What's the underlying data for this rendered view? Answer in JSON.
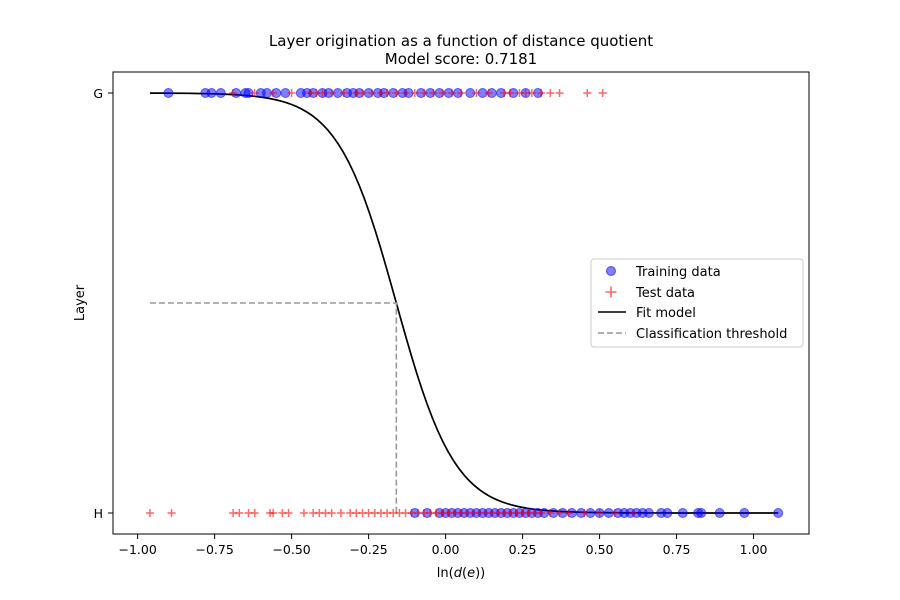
{
  "chart_data": {
    "type": "scatter",
    "title": "Layer origination as a function of distance quotient",
    "subtitle": "Model score: 0.7181",
    "xlabel_prefix": "ln(",
    "xlabel_italic": "d",
    "xlabel_mid": "(",
    "xlabel_italic2": "e",
    "xlabel_suffix": "))",
    "ylabel": "Layer",
    "xlim": [
      -1.08,
      1.18
    ],
    "ylim": [
      -0.05,
      1.05
    ],
    "x_ticks": [
      -1.0,
      -0.75,
      -0.5,
      -0.25,
      0.0,
      0.25,
      0.5,
      0.75,
      1.0
    ],
    "x_tick_labels": [
      "−1.00",
      "−0.75",
      "−0.50",
      "−0.25",
      "0.00",
      "0.25",
      "0.50",
      "0.75",
      "1.00"
    ],
    "y_ticks": [
      0,
      1
    ],
    "y_tick_labels": [
      "H",
      "G"
    ],
    "legend_position": "center-right",
    "grid": false,
    "colors": {
      "training": "#0000ff",
      "test": "#ff0000",
      "fit": "#000000",
      "threshold": "#999999"
    },
    "series": [
      {
        "name": "Training data",
        "kind": "points",
        "marker": "circle",
        "points": [
          [
            -0.9,
            1
          ],
          [
            -0.78,
            1
          ],
          [
            -0.76,
            1
          ],
          [
            -0.73,
            1
          ],
          [
            -0.68,
            1
          ],
          [
            -0.65,
            1
          ],
          [
            -0.64,
            1
          ],
          [
            -0.6,
            1
          ],
          [
            -0.58,
            1
          ],
          [
            -0.55,
            1
          ],
          [
            -0.52,
            1
          ],
          [
            -0.47,
            1
          ],
          [
            -0.45,
            1
          ],
          [
            -0.43,
            1
          ],
          [
            -0.4,
            1
          ],
          [
            -0.38,
            1
          ],
          [
            -0.35,
            1
          ],
          [
            -0.32,
            1
          ],
          [
            -0.3,
            1
          ],
          [
            -0.28,
            1
          ],
          [
            -0.25,
            1
          ],
          [
            -0.22,
            1
          ],
          [
            -0.2,
            1
          ],
          [
            -0.17,
            1
          ],
          [
            -0.14,
            1
          ],
          [
            -0.12,
            1
          ],
          [
            -0.08,
            1
          ],
          [
            -0.05,
            1
          ],
          [
            -0.02,
            1
          ],
          [
            0.01,
            1
          ],
          [
            0.04,
            1
          ],
          [
            0.08,
            1
          ],
          [
            0.12,
            1
          ],
          [
            0.15,
            1
          ],
          [
            0.18,
            1
          ],
          [
            0.22,
            1
          ],
          [
            0.26,
            1
          ],
          [
            0.3,
            1
          ],
          [
            -0.1,
            0
          ],
          [
            -0.06,
            0
          ],
          [
            -0.02,
            0
          ],
          [
            0.0,
            0
          ],
          [
            0.02,
            0
          ],
          [
            0.04,
            0
          ],
          [
            0.06,
            0
          ],
          [
            0.08,
            0
          ],
          [
            0.1,
            0
          ],
          [
            0.12,
            0
          ],
          [
            0.14,
            0
          ],
          [
            0.16,
            0
          ],
          [
            0.18,
            0
          ],
          [
            0.2,
            0
          ],
          [
            0.22,
            0
          ],
          [
            0.24,
            0
          ],
          [
            0.26,
            0
          ],
          [
            0.28,
            0
          ],
          [
            0.3,
            0
          ],
          [
            0.32,
            0
          ],
          [
            0.35,
            0
          ],
          [
            0.38,
            0
          ],
          [
            0.41,
            0
          ],
          [
            0.44,
            0
          ],
          [
            0.47,
            0
          ],
          [
            0.5,
            0
          ],
          [
            0.53,
            0
          ],
          [
            0.56,
            0
          ],
          [
            0.58,
            0
          ],
          [
            0.6,
            0
          ],
          [
            0.62,
            0
          ],
          [
            0.64,
            0
          ],
          [
            0.66,
            0
          ],
          [
            0.7,
            0
          ],
          [
            0.72,
            0
          ],
          [
            0.77,
            0
          ],
          [
            0.82,
            0
          ],
          [
            0.83,
            0
          ],
          [
            0.89,
            0
          ],
          [
            0.97,
            0
          ],
          [
            1.08,
            0
          ]
        ]
      },
      {
        "name": "Test data",
        "kind": "points",
        "marker": "plus",
        "points": [
          [
            -0.69,
            1
          ],
          [
            -0.62,
            1
          ],
          [
            -0.56,
            1
          ],
          [
            -0.5,
            1
          ],
          [
            -0.44,
            1
          ],
          [
            -0.42,
            1
          ],
          [
            -0.4,
            1
          ],
          [
            -0.37,
            1
          ],
          [
            -0.33,
            1
          ],
          [
            -0.29,
            1
          ],
          [
            -0.27,
            1
          ],
          [
            -0.24,
            1
          ],
          [
            -0.21,
            1
          ],
          [
            -0.19,
            1
          ],
          [
            -0.16,
            1
          ],
          [
            -0.13,
            1
          ],
          [
            -0.1,
            1
          ],
          [
            -0.07,
            1
          ],
          [
            -0.04,
            1
          ],
          [
            -0.01,
            1
          ],
          [
            0.02,
            1
          ],
          [
            0.05,
            1
          ],
          [
            0.1,
            1
          ],
          [
            0.14,
            1
          ],
          [
            0.19,
            1
          ],
          [
            0.21,
            1
          ],
          [
            0.24,
            1
          ],
          [
            0.26,
            1
          ],
          [
            0.28,
            1
          ],
          [
            0.31,
            1
          ],
          [
            0.34,
            1
          ],
          [
            0.37,
            1
          ],
          [
            0.46,
            1
          ],
          [
            0.51,
            1
          ],
          [
            -0.96,
            0
          ],
          [
            -0.89,
            0
          ],
          [
            -0.69,
            0
          ],
          [
            -0.67,
            0
          ],
          [
            -0.64,
            0
          ],
          [
            -0.62,
            0
          ],
          [
            -0.57,
            0
          ],
          [
            -0.56,
            0
          ],
          [
            -0.53,
            0
          ],
          [
            -0.51,
            0
          ],
          [
            -0.46,
            0
          ],
          [
            -0.43,
            0
          ],
          [
            -0.41,
            0
          ],
          [
            -0.39,
            0
          ],
          [
            -0.37,
            0
          ],
          [
            -0.34,
            0
          ],
          [
            -0.31,
            0
          ],
          [
            -0.29,
            0
          ],
          [
            -0.27,
            0
          ],
          [
            -0.25,
            0
          ],
          [
            -0.23,
            0
          ],
          [
            -0.21,
            0
          ],
          [
            -0.19,
            0
          ],
          [
            -0.17,
            0
          ],
          [
            -0.15,
            0
          ],
          [
            -0.13,
            0
          ],
          [
            -0.11,
            0
          ],
          [
            -0.09,
            0
          ],
          [
            -0.07,
            0
          ],
          [
            -0.05,
            0
          ],
          [
            -0.03,
            0
          ],
          [
            -0.01,
            0
          ],
          [
            0.01,
            0
          ],
          [
            0.03,
            0
          ],
          [
            0.05,
            0
          ],
          [
            0.07,
            0
          ],
          [
            0.09,
            0
          ],
          [
            0.11,
            0
          ],
          [
            0.13,
            0
          ],
          [
            0.15,
            0
          ],
          [
            0.17,
            0
          ],
          [
            0.19,
            0
          ],
          [
            0.21,
            0
          ],
          [
            0.23,
            0
          ],
          [
            0.25,
            0
          ],
          [
            0.27,
            0
          ],
          [
            0.29,
            0
          ],
          [
            0.31,
            0
          ],
          [
            0.34,
            0
          ],
          [
            0.37,
            0
          ],
          [
            0.4,
            0
          ],
          [
            0.45,
            0
          ],
          [
            0.5,
            0
          ],
          [
            0.55,
            0
          ],
          [
            0.61,
            0
          ]
        ]
      },
      {
        "name": "Fit model",
        "kind": "logistic",
        "x_range": [
          -0.96,
          1.08
        ],
        "center": -0.16,
        "steepness": 10.5
      },
      {
        "name": "Classification threshold",
        "kind": "threshold",
        "x_start": -0.96,
        "x": -0.16,
        "y": 0.5
      }
    ]
  }
}
